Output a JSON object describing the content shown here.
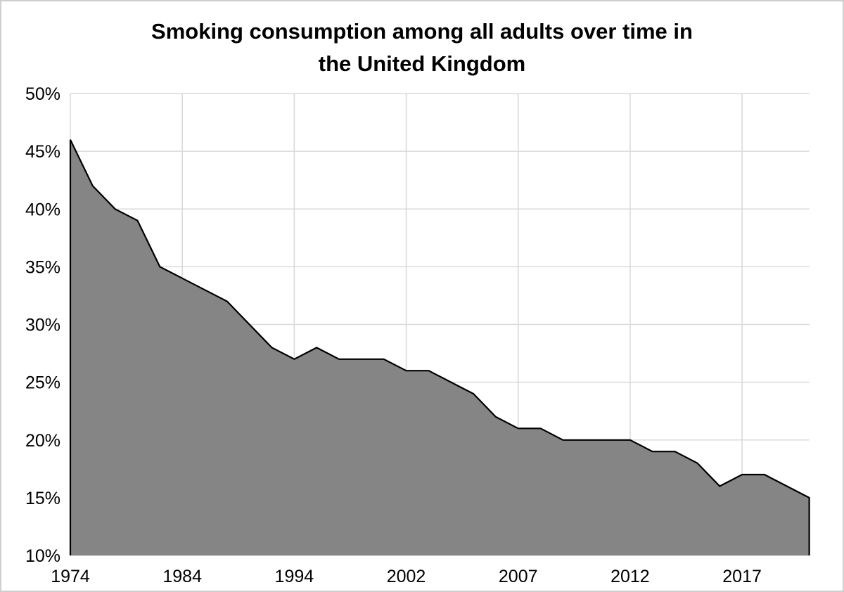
{
  "title": {
    "line1": "Smoking consumption among all adults over time in",
    "line2": "the United Kingdom"
  },
  "chart_data": {
    "type": "area",
    "title": "Smoking consumption among all adults over time in the United Kingdom",
    "x": [
      1974,
      1976,
      1978,
      1980,
      1982,
      1984,
      1986,
      1988,
      1990,
      1992,
      1994,
      1996,
      1998,
      2000,
      2001,
      2002,
      2003,
      2004,
      2005,
      2006,
      2007,
      2008,
      2009,
      2010,
      2011,
      2012,
      2013,
      2014,
      2015,
      2016,
      2017,
      2018,
      2019,
      2020
    ],
    "values": [
      46,
      42,
      40,
      39,
      35,
      34,
      33,
      32,
      30,
      28,
      27,
      28,
      27,
      27,
      27,
      26,
      26,
      25,
      24,
      22,
      21,
      21,
      20,
      20,
      20,
      20,
      19,
      19,
      18,
      16,
      17,
      17,
      16,
      15
    ],
    "x_tick_labels": [
      "1974",
      "1984",
      "1994",
      "2002",
      "2007",
      "2012",
      "2017"
    ],
    "x_tick_indices": [
      0,
      5,
      10,
      15,
      20,
      25,
      30
    ],
    "y_tick_labels": [
      "50%",
      "45%",
      "40%",
      "35%",
      "30%",
      "25%",
      "20%",
      "15%",
      "10%"
    ],
    "y_tick_values": [
      50,
      45,
      40,
      35,
      30,
      25,
      20,
      15,
      10
    ],
    "ylim": [
      10,
      50
    ],
    "xlabel": "",
    "ylabel": "",
    "grid": true,
    "legend": "none",
    "colors": {
      "fill": "#858585",
      "line": "#000000",
      "grid": "#dadada",
      "background": "#ffffff",
      "text": "#000000"
    }
  }
}
